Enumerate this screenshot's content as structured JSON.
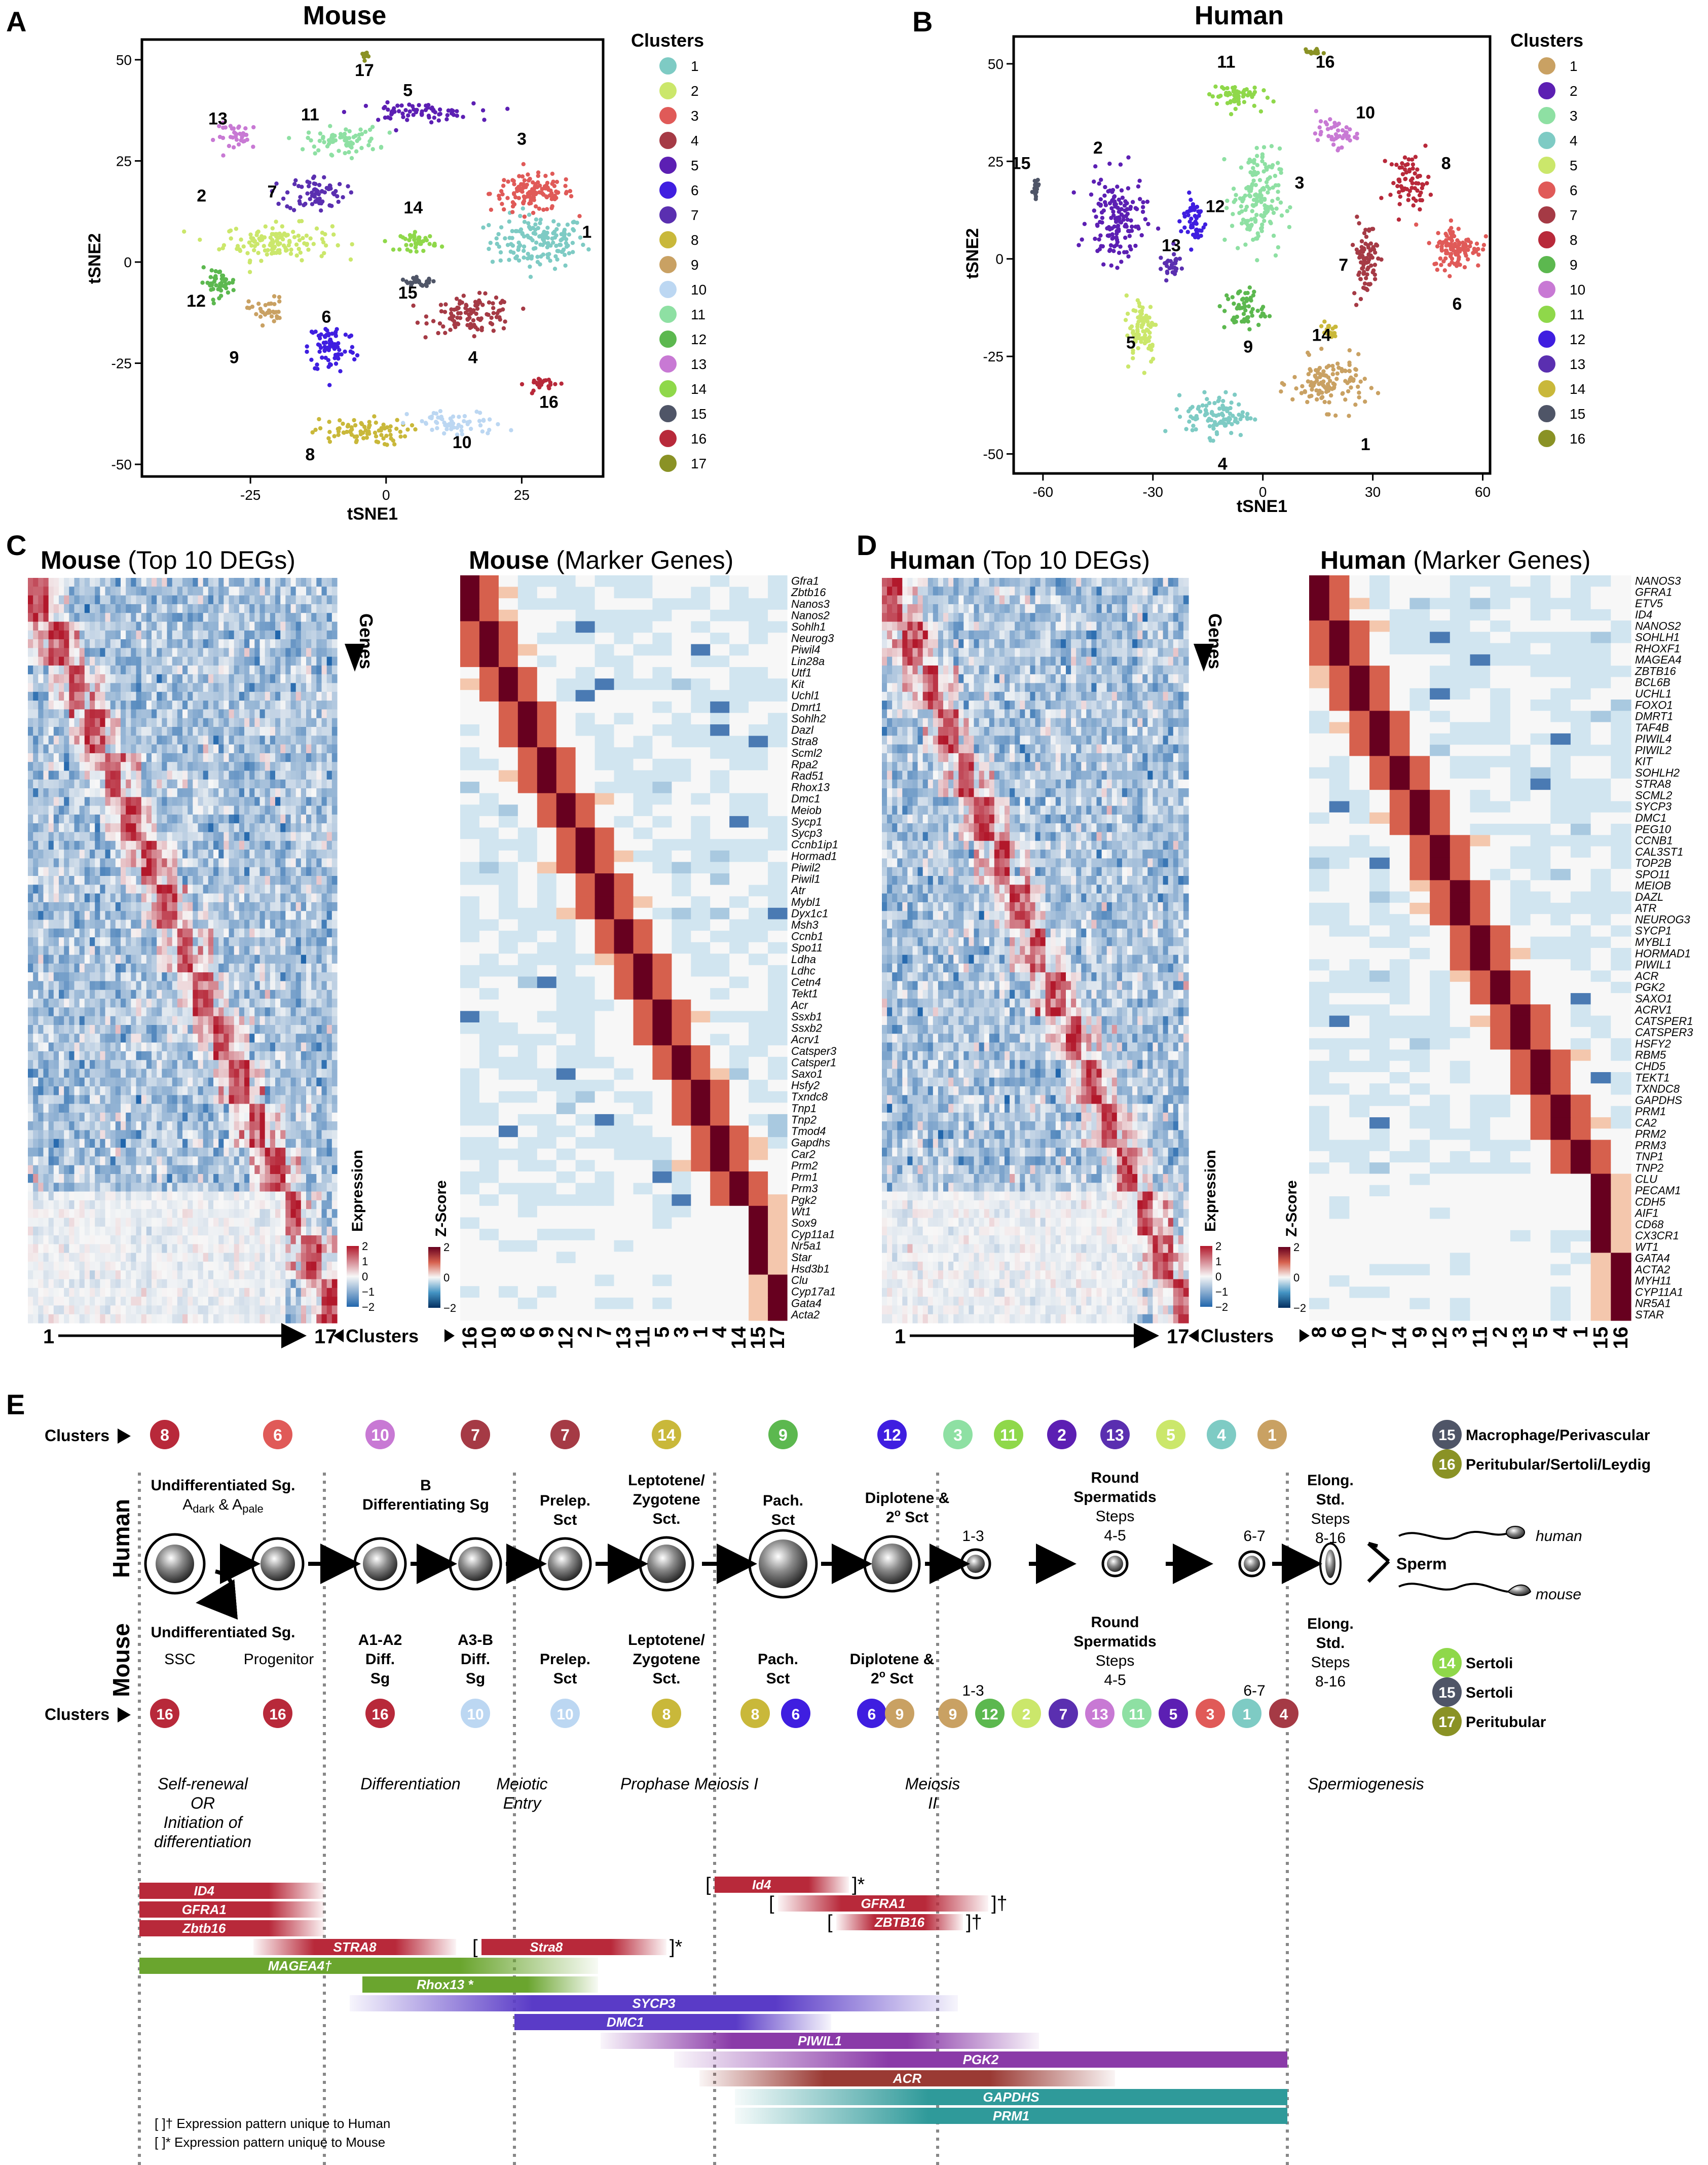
{
  "panels": {
    "A": "A",
    "B": "B",
    "C": "C",
    "D": "D",
    "E": "E"
  },
  "colors": {
    "mouse": [
      "#7ecbc4",
      "#cbe76b",
      "#e05a58",
      "#a53a45",
      "#5c1fb3",
      "#3f1ee0",
      "#5a2fb0",
      "#c9b83a",
      "#c9a163",
      "#bcd7f2",
      "#8ee0a3",
      "#5cb84f",
      "#c879d4",
      "#8fd84a",
      "#4f5567",
      "#b8293a",
      "#8a9225"
    ],
    "human": [
      "#c9a163",
      "#5c1fb3",
      "#8ee0a3",
      "#7ecbc4",
      "#cbe76b",
      "#e05a58",
      "#a53a45",
      "#b8293a",
      "#5cb84f",
      "#c879d4",
      "#8fd84a",
      "#3f1ee0",
      "#5a2fb0",
      "#c9b83a",
      "#4f5567",
      "#8a9225"
    ]
  },
  "tsne_mouse": {
    "title": "Mouse",
    "xlabel": "tSNE1",
    "ylabel": "tSNE2",
    "xticks": [
      "-25",
      "0",
      "25"
    ],
    "xtick_vals": [
      -25,
      0,
      25
    ],
    "yticks": [
      "50",
      "25",
      "0",
      "-25",
      "-50"
    ],
    "ytick_vals": [
      50,
      25,
      0,
      -25,
      -50
    ],
    "xlim": [
      -45,
      40
    ],
    "ylim": [
      -53,
      55
    ],
    "legend_title": "Clusters",
    "legend": [
      "1",
      "2",
      "3",
      "4",
      "5",
      "6",
      "7",
      "8",
      "9",
      "10",
      "11",
      "12",
      "13",
      "14",
      "15",
      "16",
      "17"
    ],
    "clusters": [
      {
        "c": 1,
        "x": 28,
        "y": 5,
        "sx": 8,
        "sy": 6,
        "n": 150
      },
      {
        "c": 2,
        "x": -20,
        "y": 5,
        "sx": 9,
        "sy": 4,
        "n": 130
      },
      {
        "c": 3,
        "x": 27,
        "y": 17,
        "sx": 7,
        "sy": 4,
        "n": 130
      },
      {
        "c": 4,
        "x": 16,
        "y": -13,
        "sx": 7,
        "sy": 4,
        "n": 110
      },
      {
        "c": 5,
        "x": 5,
        "y": 37,
        "sx": 10,
        "sy": 2,
        "n": 70
      },
      {
        "c": 6,
        "x": -10,
        "y": -21,
        "sx": 4,
        "sy": 6,
        "n": 80
      },
      {
        "c": 7,
        "x": -13,
        "y": 17,
        "sx": 5,
        "sy": 4,
        "n": 70
      },
      {
        "c": 8,
        "x": -5,
        "y": -42,
        "sx": 8,
        "sy": 3,
        "n": 80
      },
      {
        "c": 9,
        "x": -22,
        "y": -12,
        "sx": 3,
        "sy": 3,
        "n": 35
      },
      {
        "c": 10,
        "x": 13,
        "y": -40,
        "sx": 8,
        "sy": 3,
        "n": 60
      },
      {
        "c": 11,
        "x": -8,
        "y": 30,
        "sx": 6,
        "sy": 3,
        "n": 70
      },
      {
        "c": 12,
        "x": -31,
        "y": -5,
        "sx": 3,
        "sy": 3,
        "n": 45
      },
      {
        "c": 13,
        "x": -27,
        "y": 31,
        "sx": 4,
        "sy": 3,
        "n": 35
      },
      {
        "c": 14,
        "x": 6,
        "y": 5,
        "sx": 3,
        "sy": 2,
        "n": 40
      },
      {
        "c": 15,
        "x": 6,
        "y": -5,
        "sx": 3,
        "sy": 1,
        "n": 25
      },
      {
        "c": 16,
        "x": 29,
        "y": -30,
        "sx": 3,
        "sy": 1.5,
        "n": 25
      },
      {
        "c": 17,
        "x": -4,
        "y": 51,
        "sx": 0.5,
        "sy": 1,
        "n": 12
      }
    ],
    "labels": [
      {
        "t": "1",
        "x": 37,
        "y": 6
      },
      {
        "t": "2",
        "x": -34,
        "y": 15
      },
      {
        "t": "3",
        "x": 25,
        "y": 29
      },
      {
        "t": "4",
        "x": 16,
        "y": -25
      },
      {
        "t": "5",
        "x": 4,
        "y": 41
      },
      {
        "t": "6",
        "x": -11,
        "y": -15
      },
      {
        "t": "7",
        "x": -21,
        "y": 16
      },
      {
        "t": "8",
        "x": -14,
        "y": -49
      },
      {
        "t": "9",
        "x": -28,
        "y": -25
      },
      {
        "t": "10",
        "x": 14,
        "y": -46
      },
      {
        "t": "11",
        "x": -14,
        "y": 35
      },
      {
        "t": "12",
        "x": -35,
        "y": -11
      },
      {
        "t": "13",
        "x": -31,
        "y": 34
      },
      {
        "t": "14",
        "x": 5,
        "y": 12
      },
      {
        "t": "15",
        "x": 4,
        "y": -9
      },
      {
        "t": "16",
        "x": 30,
        "y": -36
      },
      {
        "t": "17",
        "x": -4,
        "y": 46
      }
    ]
  },
  "tsne_human": {
    "title": "Human",
    "xlabel": "tSNE1",
    "ylabel": "tSNE2",
    "xticks": [
      "-60",
      "-30",
      "0",
      "30",
      "60"
    ],
    "xtick_vals": [
      -60,
      -30,
      0,
      30,
      60
    ],
    "yticks": [
      "50",
      "25",
      "0",
      "-25",
      "-50"
    ],
    "ytick_vals": [
      50,
      25,
      0,
      -25,
      -50
    ],
    "xlim": [
      -68,
      62
    ],
    "ylim": [
      -55,
      57
    ],
    "legend_title": "Clusters",
    "legend": [
      "1",
      "2",
      "3",
      "4",
      "5",
      "6",
      "7",
      "8",
      "9",
      "10",
      "11",
      "12",
      "13",
      "14",
      "15",
      "16"
    ],
    "clusters": [
      {
        "c": 1,
        "x": 18,
        "y": -32,
        "sx": 9,
        "sy": 6,
        "n": 120
      },
      {
        "c": 2,
        "x": -40,
        "y": 10,
        "sx": 7,
        "sy": 10,
        "n": 150
      },
      {
        "c": 3,
        "x": -2,
        "y": 15,
        "sx": 6,
        "sy": 12,
        "n": 160
      },
      {
        "c": 4,
        "x": -12,
        "y": -40,
        "sx": 8,
        "sy": 5,
        "n": 100
      },
      {
        "c": 5,
        "x": -33,
        "y": -18,
        "sx": 4,
        "sy": 8,
        "n": 80
      },
      {
        "c": 6,
        "x": 53,
        "y": 3,
        "sx": 6,
        "sy": 5,
        "n": 110
      },
      {
        "c": 7,
        "x": 28,
        "y": 0,
        "sx": 3,
        "sy": 9,
        "n": 80
      },
      {
        "c": 8,
        "x": 40,
        "y": 20,
        "sx": 5,
        "sy": 6,
        "n": 70
      },
      {
        "c": 9,
        "x": -5,
        "y": -13,
        "sx": 5,
        "sy": 5,
        "n": 60
      },
      {
        "c": 10,
        "x": 20,
        "y": 32,
        "sx": 5,
        "sy": 3,
        "n": 45
      },
      {
        "c": 11,
        "x": -8,
        "y": 42,
        "sx": 6,
        "sy": 3,
        "n": 60
      },
      {
        "c": 12,
        "x": -19,
        "y": 10,
        "sx": 3,
        "sy": 6,
        "n": 50
      },
      {
        "c": 13,
        "x": -25,
        "y": -2,
        "sx": 3,
        "sy": 3,
        "n": 30
      },
      {
        "c": 14,
        "x": 18,
        "y": -18,
        "sx": 2,
        "sy": 2,
        "n": 20
      },
      {
        "c": 15,
        "x": -62,
        "y": 17,
        "sx": 1,
        "sy": 3,
        "n": 18
      },
      {
        "c": 16,
        "x": 14,
        "y": 53,
        "sx": 2,
        "sy": 0.6,
        "n": 15
      }
    ],
    "labels": [
      {
        "t": "1",
        "x": 28,
        "y": -49
      },
      {
        "t": "2",
        "x": -45,
        "y": 27
      },
      {
        "t": "3",
        "x": 10,
        "y": 18
      },
      {
        "t": "4",
        "x": -11,
        "y": -54
      },
      {
        "t": "5",
        "x": -36,
        "y": -23
      },
      {
        "t": "6",
        "x": 53,
        "y": -13
      },
      {
        "t": "7",
        "x": 22,
        "y": -3
      },
      {
        "t": "8",
        "x": 50,
        "y": 23
      },
      {
        "t": "9",
        "x": -4,
        "y": -24
      },
      {
        "t": "10",
        "x": 28,
        "y": 36
      },
      {
        "t": "11",
        "x": -10,
        "y": 49
      },
      {
        "t": "12",
        "x": -13,
        "y": 12
      },
      {
        "t": "13",
        "x": -25,
        "y": 2
      },
      {
        "t": "14",
        "x": 16,
        "y": -21
      },
      {
        "t": "15",
        "x": -66,
        "y": 23
      },
      {
        "t": "16",
        "x": 17,
        "y": 49
      }
    ]
  },
  "heat_titles": {
    "c1_bold": "Mouse",
    "c1_rest": " (Top 10 DEGs)",
    "c2_bold": "Mouse",
    "c2_rest": " (Marker Genes)",
    "d1_bold": "Human",
    "d1_rest": " (Top 10 DEGs)",
    "d2_bold": "Human",
    "d2_rest": " (Marker Genes)"
  },
  "heat_labels": {
    "genes": "Genes",
    "expression": "Expression",
    "zscore": "Z-Score",
    "clusters": "Clusters",
    "first": "1",
    "last": "17"
  },
  "colorbar_ticks": [
    "2",
    "1",
    "0",
    "−1",
    "−2"
  ],
  "zscore_ticks": [
    "2",
    "0",
    "−2"
  ],
  "mouse_marker_genes": [
    "Gfra1",
    "Zbtb16",
    "Nanos3",
    "Nanos2",
    "Sohlh1",
    "Neurog3",
    "Piwil4",
    "Lin28a",
    "Utf1",
    "Kit",
    "Uchl1",
    "Dmrt1",
    "Sohlh2",
    "Dazl",
    "Stra8",
    "Scml2",
    "Rpa2",
    "Rad51",
    "Rhox13",
    "Dmc1",
    "Meiob",
    "Sycp1",
    "Sycp3",
    "Ccnb1ip1",
    "Hormad1",
    "Piwil2",
    "Piwil1",
    "Atr",
    "Mybl1",
    "Dyx1c1",
    "Msh3",
    "Ccnb1",
    "Spo11",
    "Ldha",
    "Ldhc",
    "Cetn4",
    "Tekt1",
    "Acr",
    "Ssxb1",
    "Ssxb2",
    "Acrv1",
    "Catsper3",
    "Catsper1",
    "Saxo1",
    "Hsfy2",
    "Txndc8",
    "Tnp1",
    "Tnp2",
    "Tmod4",
    "Gapdhs",
    "Car2",
    "Prm2",
    "Prm1",
    "Prm3",
    "Pgk2",
    "Wt1",
    "Sox9",
    "Cyp11a1",
    "Nr5a1",
    "Star",
    "Hsd3b1",
    "Clu",
    "Cyp17a1",
    "Gata4",
    "Acta2"
  ],
  "mouse_marker_clusters": [
    "16",
    "10",
    "8",
    "6",
    "9",
    "12",
    "2",
    "7",
    "13",
    "11",
    "5",
    "3",
    "1",
    "4",
    "14",
    "15",
    "17"
  ],
  "human_marker_genes": [
    "NANOS3",
    "GFRA1",
    "ETV5",
    "ID4",
    "NANOS2",
    "SOHLH1",
    "RHOXF1",
    "MAGEA4",
    "ZBTB16",
    "BCL6B",
    "UCHL1",
    "FOXO1",
    "DMRT1",
    "TAF4B",
    "PIWIL4",
    "PIWIL2",
    "KIT",
    "SOHLH2",
    "STRA8",
    "SCML2",
    "SYCP3",
    "DMC1",
    "PEG10",
    "CCNB1",
    "CAL3ST1",
    "TOP2B",
    "SPO11",
    "MEIOB",
    "DAZL",
    "ATR",
    "NEUROG3",
    "SYCP1",
    "MYBL1",
    "HORMAD1",
    "PIWIL1",
    "ACR",
    "PGK2",
    "SAXO1",
    "ACRV1",
    "CATSPER1",
    "CATSPER3",
    "HSFY2",
    "RBM5",
    "CHD5",
    "TEKT1",
    "TXNDC8",
    "GAPDHS",
    "PRM1",
    "CA2",
    "PRM2",
    "PRM3",
    "TNP1",
    "TNP2",
    "CLU",
    "PECAM1",
    "CDH5",
    "AIF1",
    "CD68",
    "CX3CR1",
    "WT1",
    "GATA4",
    "ACTA2",
    "MYH11",
    "CYP11A1",
    "NR5A1",
    "STAR"
  ],
  "human_marker_clusters": [
    "8",
    "6",
    "10",
    "7",
    "14",
    "9",
    "12",
    "3",
    "11",
    "2",
    "13",
    "5",
    "4",
    "1",
    "15",
    "16"
  ],
  "e": {
    "clusters_label": "Clusters",
    "human_label": "Human",
    "mouse_label": "Mouse",
    "human_top": [
      {
        "t": "8",
        "c": "#b8293a"
      },
      {
        "t": "6",
        "c": "#e05a58"
      },
      {
        "t": "10",
        "c": "#c879d4"
      },
      {
        "t": "7",
        "c": "#a53a45"
      },
      {
        "t": "7",
        "c": "#a53a45"
      },
      {
        "t": "14",
        "c": "#c9b83a"
      },
      {
        "t": "9",
        "c": "#5cb84f"
      },
      {
        "t": "12",
        "c": "#3f1ee0"
      },
      {
        "t": "3",
        "c": "#8ee0a3"
      },
      {
        "t": "11",
        "c": "#8fd84a"
      },
      {
        "t": "2",
        "c": "#5c1fb3"
      },
      {
        "t": "13",
        "c": "#5a2fb0"
      },
      {
        "t": "5",
        "c": "#cbe76b"
      },
      {
        "t": "4",
        "c": "#7ecbc4"
      },
      {
        "t": "1",
        "c": "#c9a163"
      }
    ],
    "mouse_bottom": [
      {
        "t": "16",
        "c": "#b8293a"
      },
      {
        "t": "16",
        "c": "#b8293a"
      },
      {
        "t": "16",
        "c": "#b8293a"
      },
      {
        "t": "10",
        "c": "#bcd7f2"
      },
      {
        "t": "10",
        "c": "#bcd7f2"
      },
      {
        "t": "8",
        "c": "#c9b83a"
      },
      {
        "t": "8",
        "c": "#c9b83a"
      },
      {
        "t": "6",
        "c": "#3f1ee0"
      },
      {
        "t": "6",
        "c": "#3f1ee0"
      },
      {
        "t": "9",
        "c": "#c9a163"
      },
      {
        "t": "9",
        "c": "#c9a163"
      },
      {
        "t": "12",
        "c": "#5cb84f"
      },
      {
        "t": "2",
        "c": "#cbe76b"
      },
      {
        "t": "7",
        "c": "#5a2fb0"
      },
      {
        "t": "13",
        "c": "#c879d4"
      },
      {
        "t": "11",
        "c": "#8ee0a3"
      },
      {
        "t": "5",
        "c": "#5c1fb3"
      },
      {
        "t": "3",
        "c": "#e05a58"
      },
      {
        "t": "1",
        "c": "#7ecbc4"
      },
      {
        "t": "4",
        "c": "#a53a45"
      }
    ],
    "human_stages": [
      {
        "l1": "Undifferentiated Sg.",
        "l2": "A",
        "sub1": "dark",
        "mid": " & A",
        "sub2": "pale"
      },
      {
        "l1": "B",
        "l2": "Differentiating Sg"
      },
      {
        "l1": "Prelep.",
        "l2": "Sct"
      },
      {
        "l1": "Leptotene/",
        "l2": "Zygotene",
        "l3": "Sct."
      },
      {
        "l1": "Pach.",
        "l2": "Sct"
      },
      {
        "l1": "Diplotene &",
        "l2": "2",
        "sup": "o",
        "l2b": " Sct"
      },
      {
        "l1": "Round",
        "l2": "Spermatids",
        "l3": "Steps",
        "l4": "4-5"
      },
      {
        "l1": "Elong.",
        "l2": "Std.",
        "l3": "Steps",
        "l4": "8-16"
      },
      {
        "s1": "1-3",
        "s2": "6-7"
      }
    ],
    "mouse_stages": [
      {
        "l1": "Undifferentiated Sg.",
        "a": "SSC",
        "b": "Progenitor"
      },
      {
        "l1": "A1-A2",
        "l2": "Diff.",
        "l3": "Sg"
      },
      {
        "l1": "A3-B",
        "l2": "Diff.",
        "l3": "Sg"
      },
      {
        "l1": "Prelep.",
        "l2": "Sct"
      },
      {
        "l1": "Leptotene/",
        "l2": "Zygotene",
        "l3": "Sct."
      },
      {
        "l1": "Pach.",
        "l2": "Sct"
      },
      {
        "l1": "Diplotene &",
        "l2": "2",
        "sup": "o",
        "l2b": " Sct"
      },
      {
        "l1": "Round",
        "l2": "Spermatids",
        "l3": "Steps",
        "l4": "4-5"
      },
      {
        "l1": "Elong.",
        "l2": "Std.",
        "l3": "Steps",
        "l4": "8-16"
      },
      {
        "s1": "1-3",
        "s2": "6-7"
      }
    ],
    "sperm": "Sperm",
    "human_sp": "human",
    "mouse_sp": "mouse",
    "side_human": [
      {
        "t": "15",
        "c": "#4f5567",
        "label": "Macrophage/Perivascular"
      },
      {
        "t": "16",
        "c": "#8a9225",
        "label": "Peritubular/Sertoli/Leydig"
      }
    ],
    "side_mouse": [
      {
        "t": "14",
        "c": "#8fd84a",
        "label": "Sertoli"
      },
      {
        "t": "15",
        "c": "#4f5567",
        "label": "Sertoli"
      },
      {
        "t": "17",
        "c": "#8a9225",
        "label": "Peritubular"
      }
    ],
    "phases": [
      "Self-renewal",
      "OR",
      "Initiation of",
      "differentiation",
      "Differentiation",
      "Meiotic",
      "Entry",
      "Prophase Meiosis I",
      "Meiosis",
      "II",
      "Spermiogenesis"
    ],
    "bars": [
      {
        "g": "ID4",
        "x0": 275,
        "x1": 640,
        "y": 3730,
        "c": "#b8293a",
        "fade": "r"
      },
      {
        "g": "GFRA1",
        "x0": 275,
        "x1": 640,
        "y": 3767,
        "c": "#b8293a",
        "fade": "r"
      },
      {
        "g": "Zbtb16",
        "x0": 275,
        "x1": 640,
        "y": 3804,
        "c": "#b8293a",
        "fade": "r"
      },
      {
        "g": "STRA8",
        "x0": 500,
        "x1": 900,
        "y": 3841,
        "c": "#b8293a",
        "fade": "b"
      },
      {
        "g": "MAGEA4",
        "mark": "†",
        "x0": 275,
        "x1": 1180,
        "y": 3878,
        "c": "#6aa52e",
        "fade": "r"
      },
      {
        "g": "Rhox13",
        "mark": " *",
        "x0": 715,
        "x1": 1180,
        "y": 3915,
        "c": "#6aa52e",
        "fade": "r"
      },
      {
        "g": "SYCP3",
        "x0": 690,
        "x1": 1890,
        "y": 3952,
        "c": "#5a3bc7",
        "fade": "b"
      },
      {
        "g": "DMC1",
        "x0": 1015,
        "x1": 1640,
        "y": 3989,
        "c": "#5a3bc7",
        "fade": "r"
      },
      {
        "g": "PIWIL1",
        "x0": 1185,
        "x1": 2050,
        "y": 4026,
        "c": "#8a3aa8",
        "fade": "b"
      },
      {
        "g": "PGK2",
        "x0": 1330,
        "x1": 2540,
        "y": 4063,
        "c": "#8a3aa8",
        "fade": "l"
      },
      {
        "g": "ACR",
        "x0": 1380,
        "x1": 2200,
        "y": 4100,
        "c": "#9a3a34",
        "fade": "b"
      },
      {
        "g": "GAPDHS",
        "x0": 1450,
        "x1": 2540,
        "y": 4137,
        "c": "#2f9a9a",
        "fade": "l"
      },
      {
        "g": "PRM1",
        "x0": 1450,
        "x1": 2540,
        "y": 4174,
        "c": "#2f9a9a",
        "fade": "l"
      },
      {
        "g": "Stra8",
        "x0": 950,
        "x1": 1315,
        "y": 3841,
        "c": "#b8293a",
        "fade": "r",
        "br": "]*"
      },
      {
        "g": "Id4",
        "x0": 1410,
        "x1": 1675,
        "y": 3718,
        "c": "#b8293a",
        "fade": "r",
        "br": "]*"
      },
      {
        "g": "GFRA1",
        "x0": 1535,
        "x1": 1950,
        "y": 3755,
        "c": "#b8293a",
        "fade": "b",
        "br": "]†"
      },
      {
        "g": "ZBTB16",
        "x0": 1650,
        "x1": 1900,
        "y": 3792,
        "c": "#b8293a",
        "fade": "b",
        "br": "]†"
      }
    ],
    "footnote1": "[  ]† Expression pattern unique to Human",
    "footnote2": "[  ]* Expression pattern unique to Mouse"
  }
}
